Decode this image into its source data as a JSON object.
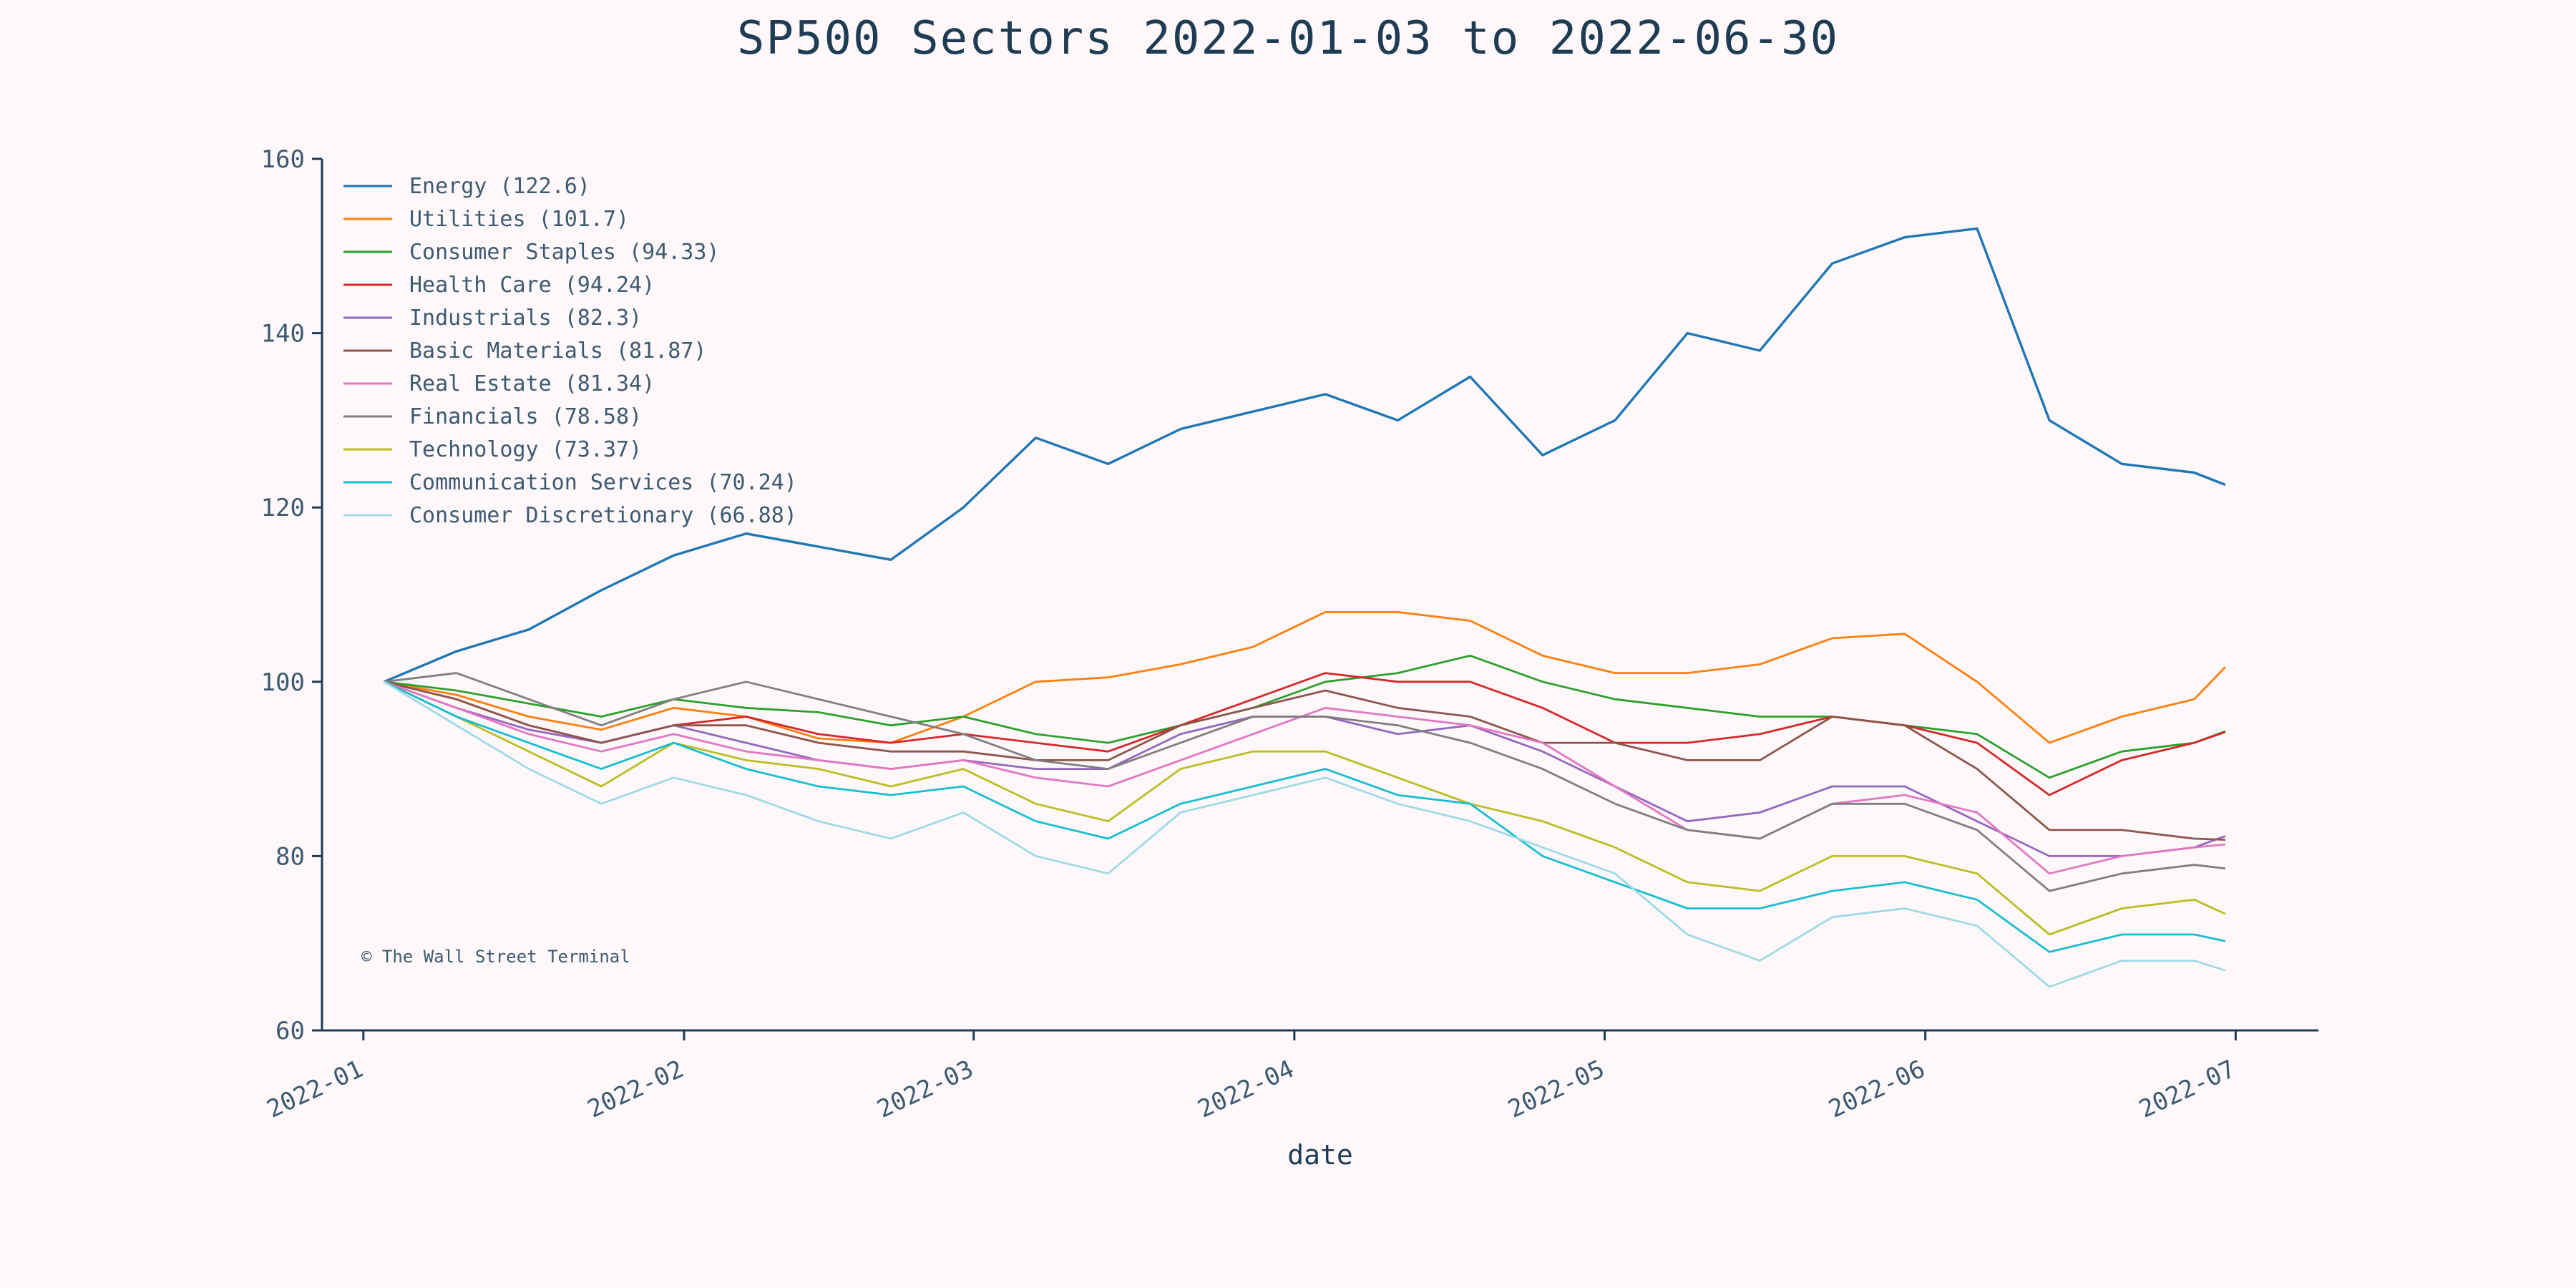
{
  "chart_data": {
    "type": "line",
    "title": "SP500 Sectors 2022-01-03 to 2022-06-30",
    "xlabel": "date",
    "ylabel": "",
    "ylim": [
      60,
      160
    ],
    "xlim": [
      "2021-12-28",
      "2022-07-09"
    ],
    "yticks": [
      "60",
      "80",
      "100",
      "120",
      "140",
      "160"
    ],
    "xticks": [
      {
        "date": "2022-01-01",
        "label": "2022-01"
      },
      {
        "date": "2022-02-01",
        "label": "2022-02"
      },
      {
        "date": "2022-03-01",
        "label": "2022-03"
      },
      {
        "date": "2022-04-01",
        "label": "2022-04"
      },
      {
        "date": "2022-05-01",
        "label": "2022-05"
      },
      {
        "date": "2022-06-01",
        "label": "2022-06"
      },
      {
        "date": "2022-07-01",
        "label": "2022-07"
      }
    ],
    "grid": false,
    "legend_position": "top-left",
    "watermark": "© The Wall Street Terminal",
    "x": [
      "2022-01-03",
      "2022-01-10",
      "2022-01-17",
      "2022-01-24",
      "2022-01-31",
      "2022-02-07",
      "2022-02-14",
      "2022-02-21",
      "2022-02-28",
      "2022-03-07",
      "2022-03-14",
      "2022-03-21",
      "2022-03-28",
      "2022-04-04",
      "2022-04-11",
      "2022-04-18",
      "2022-04-25",
      "2022-05-02",
      "2022-05-09",
      "2022-05-16",
      "2022-05-23",
      "2022-05-30",
      "2022-06-06",
      "2022-06-13",
      "2022-06-20",
      "2022-06-27",
      "2022-06-30"
    ],
    "series": [
      {
        "name": "Energy (122.6)",
        "color": "#1f77b4",
        "values": [
          100,
          103.5,
          106,
          110.5,
          114.5,
          117,
          115.5,
          114,
          120,
          128,
          125,
          129,
          131,
          133,
          130,
          135,
          126,
          130,
          140,
          138,
          148,
          151,
          152,
          130,
          125,
          124,
          122.6
        ]
      },
      {
        "name": "Utilities (101.7)",
        "color": "#ff7f0e",
        "values": [
          100,
          98.5,
          96,
          94.5,
          97,
          96,
          93.5,
          93,
          96,
          100,
          100.5,
          102,
          104,
          108,
          108,
          107,
          103,
          101,
          101,
          102,
          105,
          105.5,
          100,
          93,
          96,
          98,
          101.7
        ]
      },
      {
        "name": "Consumer Staples (94.33)",
        "color": "#2ca02c",
        "values": [
          100,
          99,
          97.5,
          96,
          98,
          97,
          96.5,
          95,
          96,
          94,
          93,
          95,
          97,
          100,
          101,
          103,
          100,
          98,
          97,
          96,
          96,
          95,
          94,
          89,
          92,
          93,
          94.33
        ]
      },
      {
        "name": "Health Care (94.24)",
        "color": "#d62728",
        "values": [
          100,
          98,
          95,
          93,
          95,
          96,
          94,
          93,
          94,
          93,
          92,
          95,
          98,
          101,
          100,
          100,
          97,
          93,
          93,
          94,
          96,
          95,
          93,
          87,
          91,
          93,
          94.24
        ]
      },
      {
        "name": "Industrials (82.3)",
        "color": "#9467bd",
        "values": [
          100,
          97,
          94.5,
          93,
          95,
          93,
          91,
          90,
          91,
          90,
          90,
          94,
          96,
          96,
          94,
          95,
          92,
          88,
          84,
          85,
          88,
          88,
          84,
          80,
          80,
          81,
          82.3
        ]
      },
      {
        "name": "Basic Materials (81.87)",
        "color": "#8c564b",
        "values": [
          100,
          98,
          95,
          93,
          95,
          95,
          93,
          92,
          92,
          91,
          91,
          95,
          97,
          99,
          97,
          96,
          93,
          93,
          91,
          91,
          96,
          95,
          90,
          83,
          83,
          82,
          81.87
        ]
      },
      {
        "name": "Real Estate (81.34)",
        "color": "#e377c2",
        "values": [
          100,
          97,
          94,
          92,
          94,
          92,
          91,
          90,
          91,
          89,
          88,
          91,
          94,
          97,
          96,
          95,
          93,
          88,
          83,
          82,
          86,
          87,
          85,
          78,
          80,
          81,
          81.34
        ]
      },
      {
        "name": "Financials (78.58)",
        "color": "#7f7f7f",
        "values": [
          100,
          101,
          98,
          95,
          98,
          100,
          98,
          96,
          94,
          91,
          90,
          93,
          96,
          96,
          95,
          93,
          90,
          86,
          83,
          82,
          86,
          86,
          83,
          76,
          78,
          79,
          78.58
        ]
      },
      {
        "name": "Technology (73.37)",
        "color": "#bcbd22",
        "values": [
          100,
          96,
          92,
          88,
          93,
          91,
          90,
          88,
          90,
          86,
          84,
          90,
          92,
          92,
          89,
          86,
          84,
          81,
          77,
          76,
          80,
          80,
          78,
          71,
          74,
          75,
          73.37
        ]
      },
      {
        "name": "Communication Services (70.24)",
        "color": "#17becf",
        "values": [
          100,
          96,
          93,
          90,
          93,
          90,
          88,
          87,
          88,
          84,
          82,
          86,
          88,
          90,
          87,
          86,
          80,
          77,
          74,
          74,
          76,
          77,
          75,
          69,
          71,
          71,
          70.24
        ]
      },
      {
        "name": "Consumer Discretionary (66.88)",
        "color": "#9edae5",
        "values": [
          100,
          95,
          90,
          86,
          89,
          87,
          84,
          82,
          85,
          80,
          78,
          85,
          87,
          89,
          86,
          84,
          81,
          78,
          71,
          68,
          73,
          74,
          72,
          65,
          68,
          68,
          66.88
        ]
      }
    ]
  }
}
